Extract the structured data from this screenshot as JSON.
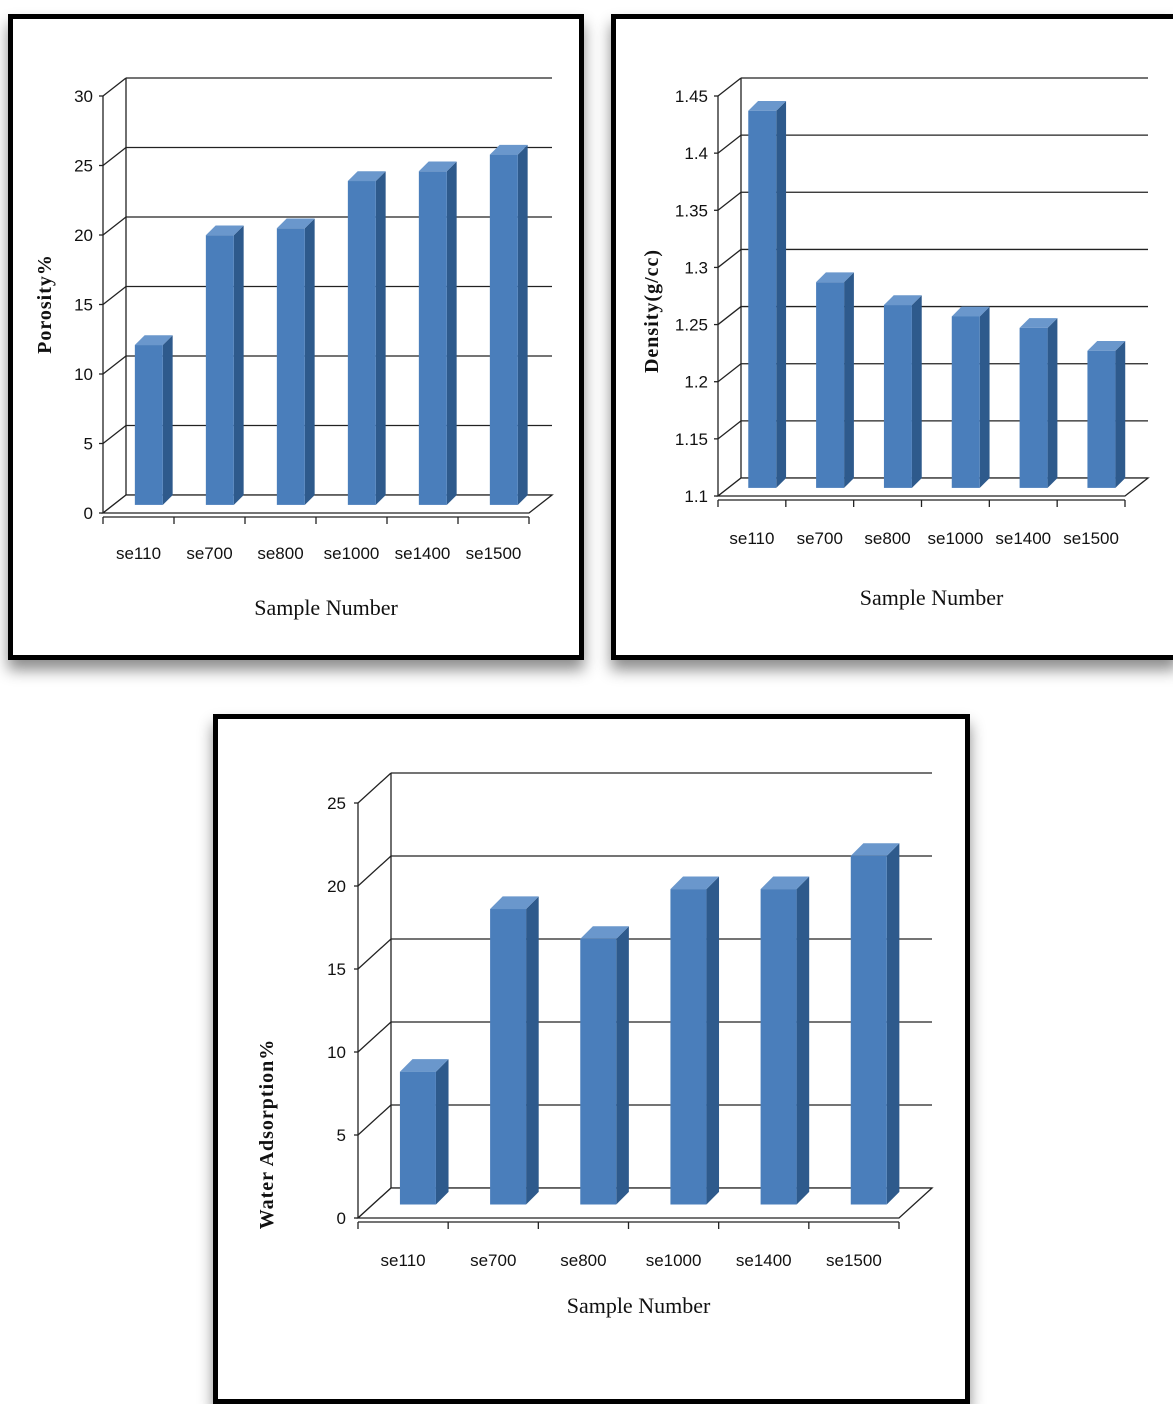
{
  "chart_data": [
    {
      "type": "bar",
      "title": "",
      "xlabel": "Sample Number",
      "ylabel": "Porosity%",
      "categories": [
        "se110",
        "se700",
        "se800",
        "se1000",
        "se1400",
        "se1500"
      ],
      "values": [
        11.5,
        19.4,
        19.9,
        23.3,
        24.0,
        25.2
      ],
      "ylim": [
        0,
        30
      ],
      "yticks": [
        "0",
        "5",
        "10",
        "15",
        "20",
        "25",
        "30"
      ],
      "grid": true,
      "bar_color": "#4a7ebb",
      "bar_side_color": "#2e5a8c",
      "bar_top_color": "#6a97cc"
    },
    {
      "type": "bar",
      "title": "",
      "xlabel": "Sample Number",
      "ylabel": "Density(g/cc)",
      "categories": [
        "se110",
        "se700",
        "se800",
        "se1000",
        "se1400",
        "se1500"
      ],
      "values": [
        1.43,
        1.28,
        1.26,
        1.25,
        1.24,
        1.22
      ],
      "ylim": [
        1.1,
        1.45
      ],
      "yticks": [
        "1.1",
        "1.15",
        "1.2",
        "1.25",
        "1.3",
        "1.35",
        "1.4",
        "1.45"
      ],
      "grid": true,
      "bar_color": "#4a7ebb",
      "bar_side_color": "#2e5a8c",
      "bar_top_color": "#6a97cc"
    },
    {
      "type": "bar",
      "title": "",
      "xlabel": "Sample Number",
      "ylabel": "Water Adsorption%",
      "categories": [
        "se110",
        "se700",
        "se800",
        "se1000",
        "se1400",
        "se1500"
      ],
      "values": [
        8.0,
        17.8,
        16.0,
        19.0,
        19.0,
        21.0
      ],
      "ylim": [
        0,
        25
      ],
      "yticks": [
        "0",
        "5",
        "10",
        "15",
        "20",
        "25"
      ],
      "grid": true,
      "bar_color": "#4a7ebb",
      "bar_side_color": "#2e5a8c",
      "bar_top_color": "#6a97cc"
    }
  ]
}
